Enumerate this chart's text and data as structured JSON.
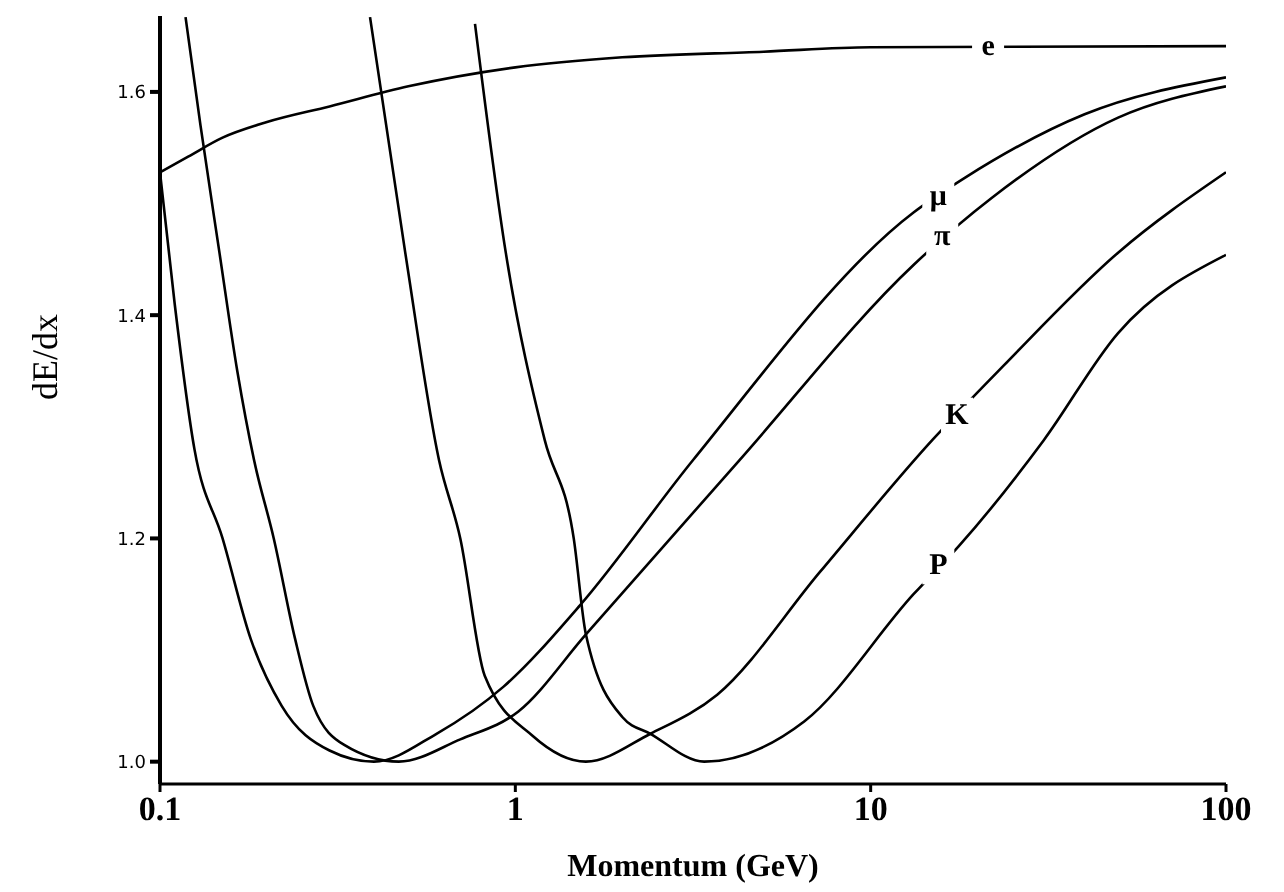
{
  "chart_data": {
    "type": "line",
    "xlabel": "Momentum  (GeV)",
    "ylabel": "dE/dx",
    "log": "x",
    "grid": false,
    "legend": false,
    "marker": "none",
    "line_style": "solid",
    "xlim": [
      0.1,
      100
    ],
    "xticks": [
      0.1,
      1,
      10,
      100
    ],
    "ylim": [
      0.98,
      1.668
    ],
    "yticks": [
      {
        "value": 1,
        "label": "1.0"
      },
      {
        "value": 1.2,
        "label": "1.2"
      },
      {
        "value": 1.4,
        "label": "1.4"
      },
      {
        "value": 1.6,
        "label": "1.6"
      }
    ],
    "series": [
      {
        "color": "#000000",
        "x": [
          0.1,
          0.12,
          0.15,
          0.2,
          0.3,
          0.5,
          1,
          2,
          5,
          10,
          100
        ],
        "values": [
          1.528,
          1.542,
          1.559,
          1.573,
          1.587,
          1.605,
          1.622,
          1.631,
          1.636,
          1.64,
          1.641
        ]
      },
      {
        "color": "#000000",
        "x": [
          0.1,
          0.11,
          0.125,
          0.15,
          0.18,
          0.22,
          0.3,
          0.4,
          0.6,
          0.925,
          1.52,
          3.16,
          13.2,
          18.4,
          40,
          100
        ],
        "values": [
          1.528,
          1.41,
          1.28,
          1.2,
          1.11,
          1.05,
          1.01,
          1.0,
          1.025,
          1.067,
          1.14,
          1.27,
          1.492,
          1.523,
          1.58,
          1.613
        ]
      },
      {
        "color": "#000000",
        "x": [
          0.118,
          0.13,
          0.147,
          0.165,
          0.184,
          0.209,
          0.24,
          0.27,
          0.33,
          0.47,
          0.7,
          1.02,
          1.58,
          4.27,
          13.2,
          21.9,
          49.7,
          100
        ],
        "values": [
          1.667,
          1.57,
          1.456,
          1.35,
          1.27,
          1.2,
          1.11,
          1.05,
          1.015,
          1.0,
          1.02,
          1.045,
          1.114,
          1.27,
          1.445,
          1.505,
          1.577,
          1.605
        ]
      },
      {
        "color": "#000000",
        "x": [
          0.39,
          0.49,
          0.61,
          0.7,
          0.82,
          1.12,
          1.58,
          2.4,
          3.7,
          7.2,
          14.9,
          23.7,
          49.7,
          100
        ],
        "values": [
          1.667,
          1.456,
          1.27,
          1.2,
          1.077,
          1.023,
          1.0,
          1.025,
          1.06,
          1.17,
          1.288,
          1.355,
          1.456,
          1.528
        ]
      },
      {
        "color": "#000000",
        "x": [
          0.77,
          0.94,
          1.21,
          1.46,
          1.58,
          2.0,
          2.4,
          3.4,
          6.5,
          13.2,
          17.7,
          30.7,
          49.7,
          100
        ],
        "values": [
          1.661,
          1.456,
          1.288,
          1.2,
          1.114,
          1.04,
          1.025,
          1.0,
          1.036,
          1.15,
          1.193,
          1.288,
          1.384,
          1.454
        ]
      }
    ],
    "annotations": [
      {
        "text": "e",
        "x": 21.4,
        "y": 1.64
      },
      {
        "text": "μ",
        "x": 15.5,
        "y": 1.506
      },
      {
        "text": "π",
        "x": 15.9,
        "y": 1.47
      },
      {
        "text": "K",
        "x": 17.5,
        "y": 1.31
      },
      {
        "text": "P",
        "x": 15.5,
        "y": 1.175
      }
    ]
  }
}
